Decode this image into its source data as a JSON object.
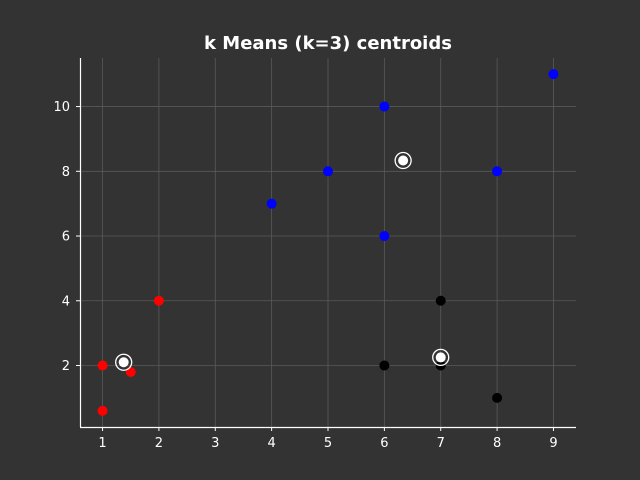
{
  "chart_data": {
    "type": "scatter",
    "title": "k Means (k=3) centroids",
    "xlabel": "",
    "ylabel": "",
    "xlim": [
      0.6,
      9.4
    ],
    "ylim": [
      0.1,
      11.5
    ],
    "xticks": [
      1,
      2,
      3,
      4,
      5,
      6,
      7,
      8,
      9
    ],
    "yticks": [
      2,
      4,
      6,
      8,
      10
    ],
    "grid": true,
    "colors": {
      "background": "#323332",
      "text": "#ffffff",
      "grid": "#5a5a5a"
    },
    "series": [
      {
        "color": "#ff0000",
        "points": [
          [
            1,
            2
          ],
          [
            1,
            0.6
          ],
          [
            1.5,
            1.8
          ],
          [
            2,
            4
          ]
        ]
      },
      {
        "color": "#0000ff",
        "points": [
          [
            4,
            7
          ],
          [
            5,
            8
          ],
          [
            6,
            10
          ],
          [
            6,
            6
          ],
          [
            8,
            8
          ],
          [
            9,
            11
          ]
        ]
      },
      {
        "color": "#000000",
        "points": [
          [
            6,
            2
          ],
          [
            7,
            4
          ],
          [
            7,
            2
          ],
          [
            8,
            1
          ]
        ]
      }
    ],
    "centroids": {
      "color": "#ffffff",
      "points": [
        [
          1.375,
          2.1
        ],
        [
          6.333,
          8.333
        ],
        [
          7,
          2.25
        ]
      ]
    }
  }
}
